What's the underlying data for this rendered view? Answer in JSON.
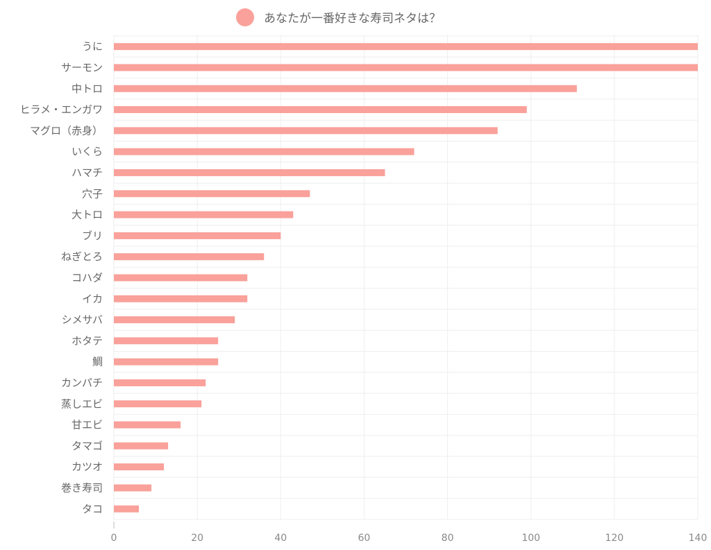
{
  "chart_data": {
    "type": "bar",
    "orientation": "horizontal",
    "series": [
      {
        "name": "あなたが一番好きな寿司ネタは？",
        "color": "#f9a19a",
        "values": [
          140,
          140,
          111,
          99,
          92,
          72,
          65,
          47,
          43,
          40,
          36,
          32,
          32,
          29,
          25,
          25,
          22,
          21,
          16,
          13,
          12,
          9,
          6
        ]
      }
    ],
    "categories": [
      "うに",
      "サーモン",
      "中トロ",
      "ヒラメ・エンガワ",
      "マグロ（赤身）",
      "いくら",
      "ハマチ",
      "穴子",
      "大トロ",
      "ブリ",
      "ねぎとろ",
      "コハダ",
      "イカ",
      "シメサバ",
      "ホタテ",
      "鯛",
      "カンパチ",
      "蒸しエビ",
      "甘エビ",
      "タマゴ",
      "カツオ",
      "巻き寿司",
      "タコ"
    ],
    "xlim": [
      0,
      140
    ],
    "xticks": [
      "0",
      "20",
      "40",
      "60",
      "80",
      "100",
      "120",
      "140"
    ],
    "grid": true,
    "legend_position": "top"
  }
}
